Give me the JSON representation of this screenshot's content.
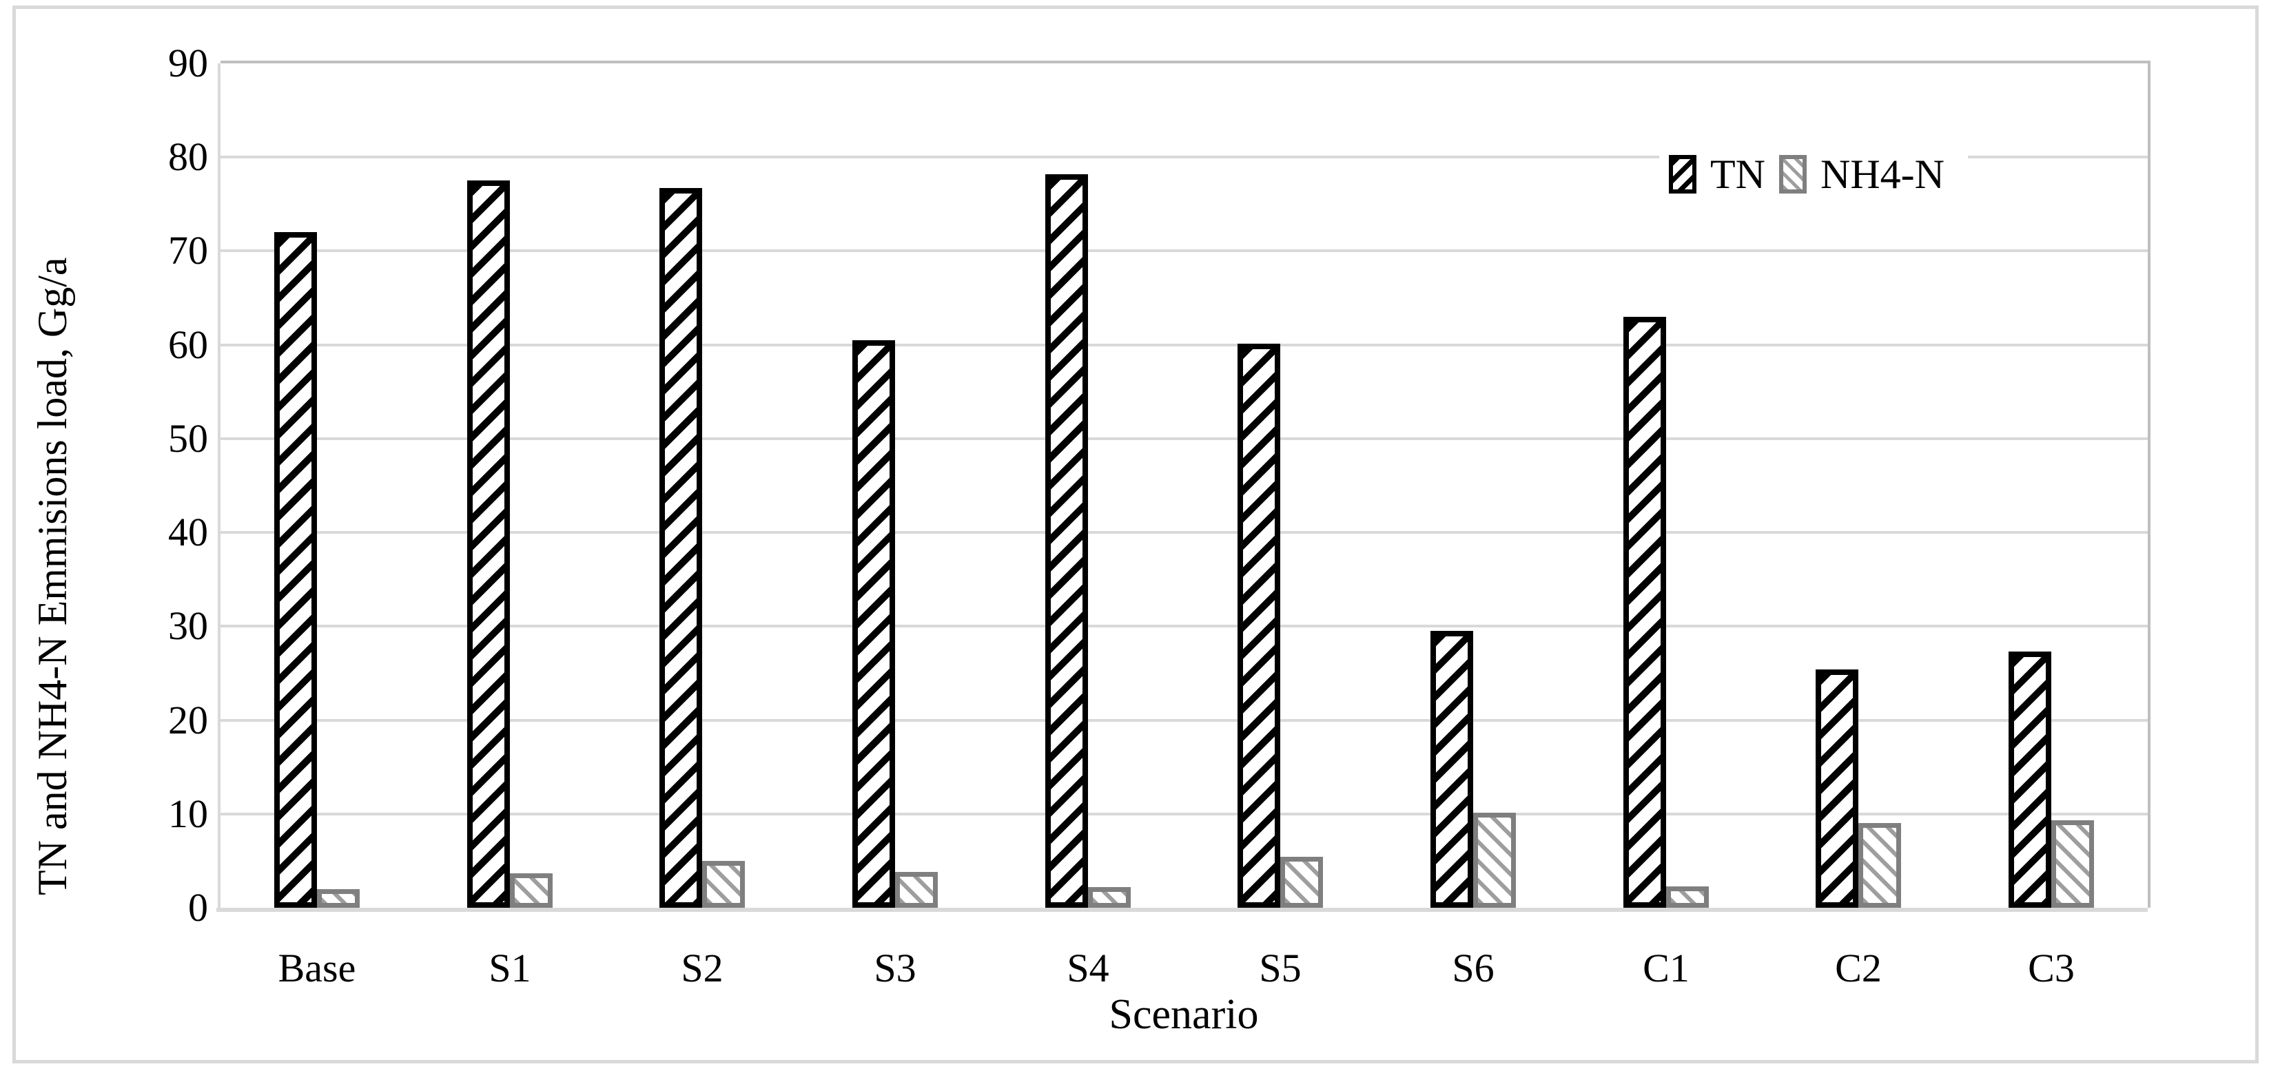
{
  "chart_data": {
    "type": "bar",
    "title": "",
    "categories": [
      "Base",
      "S1",
      "S2",
      "S3",
      "S4",
      "S5",
      "S6",
      "C1",
      "C2",
      "C3"
    ],
    "series": [
      {
        "name": "TN",
        "values": [
          72.0,
          77.5,
          76.7,
          60.5,
          78.2,
          60.1,
          29.5,
          63.0,
          25.4,
          27.3
        ]
      },
      {
        "name": "NH4-N",
        "values": [
          2.0,
          3.7,
          5.0,
          3.8,
          2.2,
          5.4,
          10.1,
          2.3,
          9.0,
          9.3
        ]
      }
    ],
    "xlabel": "Scenario",
    "ylabel": "TN and NH4-N Emmisions load, Gg/a",
    "ylim": [
      0,
      90
    ],
    "ytick_interval": 10,
    "yticks": [
      0,
      10,
      20,
      30,
      40,
      50,
      60,
      70,
      80,
      90
    ],
    "grid": "horizontal",
    "legend_position": "top-right-inside",
    "colors": {
      "tn_bar": "#000000",
      "nh4n_bar": "#7f7f7f",
      "gridline": "#d9d9d9",
      "plot_border": "#bfbfbf",
      "text": "#000000"
    },
    "patterns": {
      "tn": "black-diagonal-hatch-up",
      "nh4n": "gray-diagonal-hatch-down"
    }
  }
}
